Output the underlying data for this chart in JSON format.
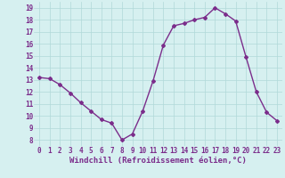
{
  "x": [
    0,
    1,
    2,
    3,
    4,
    5,
    6,
    7,
    8,
    9,
    10,
    11,
    12,
    13,
    14,
    15,
    16,
    17,
    18,
    19,
    20,
    21,
    22,
    23
  ],
  "y": [
    13.2,
    13.1,
    12.6,
    11.9,
    11.1,
    10.4,
    9.7,
    9.4,
    8.0,
    8.5,
    10.4,
    12.9,
    15.9,
    17.5,
    17.7,
    18.0,
    18.2,
    19.0,
    18.5,
    17.9,
    14.9,
    12.0,
    10.3,
    9.6
  ],
  "line_color": "#7b2d8b",
  "marker": "D",
  "marker_size": 2.0,
  "line_width": 1.0,
  "bg_color": "#d6f0f0",
  "grid_color": "#b0d8d8",
  "xlabel": "Windchill (Refroidissement éolien,°C)",
  "xlabel_fontsize": 6.5,
  "xlabel_color": "#7b2d8b",
  "yticks": [
    8,
    9,
    10,
    11,
    12,
    13,
    14,
    15,
    16,
    17,
    18,
    19
  ],
  "xticks": [
    0,
    1,
    2,
    3,
    4,
    5,
    6,
    7,
    8,
    9,
    10,
    11,
    12,
    13,
    14,
    15,
    16,
    17,
    18,
    19,
    20,
    21,
    22,
    23
  ],
  "ylim": [
    7.5,
    19.5
  ],
  "xlim": [
    -0.5,
    23.5
  ],
  "tick_fontsize": 5.5,
  "tick_color": "#7b2d8b"
}
